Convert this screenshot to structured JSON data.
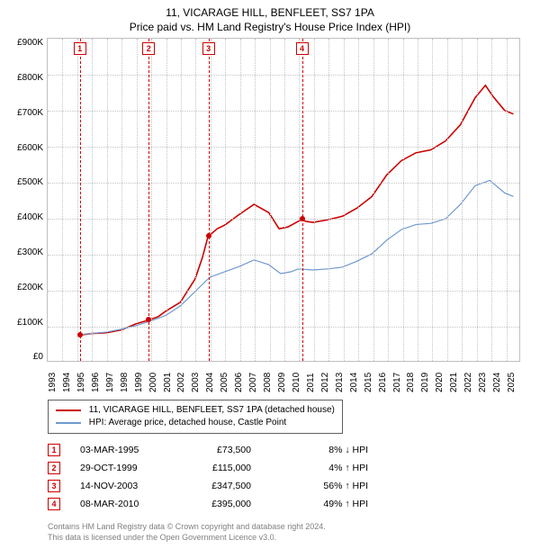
{
  "title1": "11, VICARAGE HILL, BENFLEET, SS7 1PA",
  "title2": "Price paid vs. HM Land Registry's House Price Index (HPI)",
  "chart": {
    "type": "line",
    "ylim": [
      0,
      900000
    ],
    "ytick_step": 100000,
    "yticks_labels": [
      "£900K",
      "£800K",
      "£700K",
      "£600K",
      "£500K",
      "£400K",
      "£300K",
      "£200K",
      "£100K",
      "£0"
    ],
    "xlim": [
      1993,
      2025
    ],
    "xticks": [
      1993,
      1994,
      1995,
      1996,
      1997,
      1998,
      1999,
      2000,
      2001,
      2002,
      2003,
      2004,
      2005,
      2006,
      2007,
      2008,
      2009,
      2010,
      2011,
      2012,
      2013,
      2014,
      2015,
      2016,
      2017,
      2018,
      2019,
      2020,
      2021,
      2022,
      2023,
      2024,
      2025
    ],
    "background_color": "#ffffff",
    "grid_color": "#c5c5c5",
    "series": [
      {
        "label": "11, VICARAGE HILL, BENFLEET, SS7 1PA (detached house)",
        "color": "#cc0000",
        "width": 1.6,
        "points": [
          [
            1995.17,
            73500
          ],
          [
            1996,
            78000
          ],
          [
            1997,
            80000
          ],
          [
            1998,
            88000
          ],
          [
            1999,
            105000
          ],
          [
            1999.83,
            115000
          ],
          [
            2000.5,
            125000
          ],
          [
            2001,
            140000
          ],
          [
            2002,
            165000
          ],
          [
            2003,
            230000
          ],
          [
            2003.5,
            290000
          ],
          [
            2003.87,
            347500
          ],
          [
            2004.5,
            370000
          ],
          [
            2005,
            380000
          ],
          [
            2006,
            410000
          ],
          [
            2007,
            438000
          ],
          [
            2008,
            415000
          ],
          [
            2008.7,
            370000
          ],
          [
            2009.3,
            375000
          ],
          [
            2010.19,
            395000
          ],
          [
            2010.6,
            390000
          ],
          [
            2011,
            388000
          ],
          [
            2012,
            395000
          ],
          [
            2013,
            405000
          ],
          [
            2014,
            428000
          ],
          [
            2015,
            460000
          ],
          [
            2016,
            520000
          ],
          [
            2017,
            560000
          ],
          [
            2018,
            582000
          ],
          [
            2019,
            590000
          ],
          [
            2020,
            615000
          ],
          [
            2021,
            660000
          ],
          [
            2022,
            735000
          ],
          [
            2022.7,
            770000
          ],
          [
            2023.2,
            740000
          ],
          [
            2024,
            700000
          ],
          [
            2024.6,
            690000
          ]
        ]
      },
      {
        "label": "HPI: Average price, detached house, Castle Point",
        "color": "#6f99cc",
        "width": 1.2,
        "points": [
          [
            1995.17,
            75000
          ],
          [
            1996,
            78000
          ],
          [
            1997,
            82000
          ],
          [
            1998,
            90000
          ],
          [
            1999,
            100000
          ],
          [
            2000,
            113000
          ],
          [
            2001,
            128000
          ],
          [
            2002,
            155000
          ],
          [
            2003,
            195000
          ],
          [
            2004,
            235000
          ],
          [
            2005,
            250000
          ],
          [
            2006,
            265000
          ],
          [
            2007,
            283000
          ],
          [
            2008,
            270000
          ],
          [
            2008.8,
            245000
          ],
          [
            2009.5,
            250000
          ],
          [
            2010,
            258000
          ],
          [
            2011,
            255000
          ],
          [
            2012,
            258000
          ],
          [
            2013,
            263000
          ],
          [
            2014,
            280000
          ],
          [
            2015,
            300000
          ],
          [
            2016,
            338000
          ],
          [
            2017,
            368000
          ],
          [
            2018,
            382000
          ],
          [
            2019,
            385000
          ],
          [
            2020,
            398000
          ],
          [
            2021,
            438000
          ],
          [
            2022,
            490000
          ],
          [
            2023,
            505000
          ],
          [
            2024,
            470000
          ],
          [
            2024.6,
            460000
          ]
        ]
      }
    ],
    "vlines_color": "#cc0000"
  },
  "legend": {
    "s0": "11, VICARAGE HILL, BENFLEET, SS7 1PA (detached house)",
    "s1": "HPI: Average price, detached house, Castle Point"
  },
  "transactions": [
    {
      "n": "1",
      "year": 1995.17,
      "date": "03-MAR-1995",
      "price": "£73,500",
      "delta": "8% ↓ HPI",
      "y": 73500
    },
    {
      "n": "2",
      "year": 1999.83,
      "date": "29-OCT-1999",
      "price": "£115,000",
      "delta": "4% ↑ HPI",
      "y": 115000
    },
    {
      "n": "3",
      "year": 2003.87,
      "date": "14-NOV-2003",
      "price": "£347,500",
      "delta": "56% ↑ HPI",
      "y": 347500
    },
    {
      "n": "4",
      "year": 2010.19,
      "date": "08-MAR-2010",
      "price": "£395,000",
      "delta": "49% ↑ HPI",
      "y": 395000
    }
  ],
  "footer": {
    "l1": "Contains HM Land Registry data © Crown copyright and database right 2024.",
    "l2": "This data is licensed under the Open Government Licence v3.0."
  }
}
